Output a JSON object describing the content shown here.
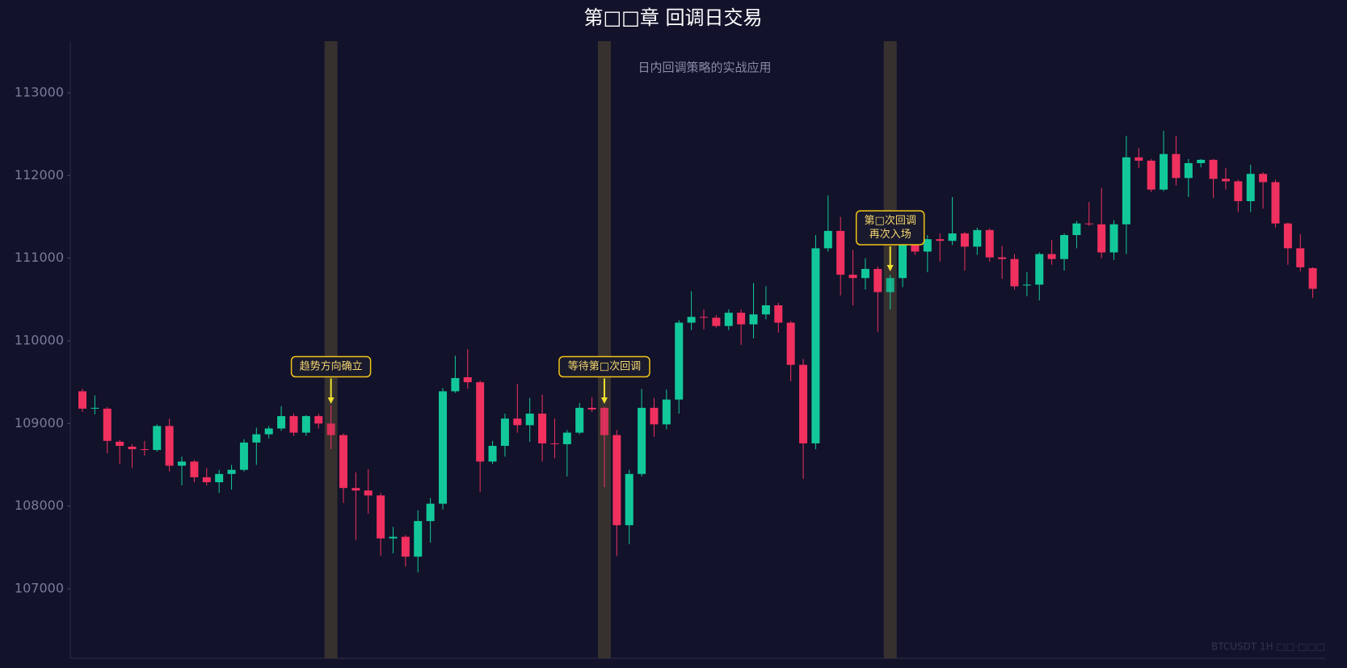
{
  "chart_data": {
    "type": "candlestick",
    "title": "第□□章 回调日交易",
    "subtitle": "日内回调策略的实战应用",
    "watermark": "BTCUSDT 1H  □□·□□□",
    "up_color": "#12c89a",
    "down_color": "#f0305f",
    "background": "#12122a",
    "annotations": [
      [
        "趋势方向确立"
      ],
      [
        "等待第□次回调"
      ],
      [
        "第□次回调",
        "再次入场"
      ]
    ],
    "ylim": [
      106160,
      113625
    ],
    "yticks": [
      107000,
      108000,
      109000,
      110000,
      111000,
      112000,
      113000
    ],
    "open": [
      109390,
      109180,
      109180,
      108780,
      108720,
      108690,
      108680,
      108970,
      108490,
      108540,
      108350,
      108290,
      108390,
      108440,
      108770,
      108870,
      108940,
      109090,
      108890,
      109090,
      109000,
      108860,
      108220,
      108190,
      108130,
      107610,
      107630,
      107390,
      107820,
      108030,
      109390,
      109560,
      109500,
      108540,
      108730,
      109060,
      108980,
      109120,
      108760,
      108750,
      108890,
      109190,
      109190,
      108860,
      107770,
      108390,
      109190,
      108990,
      109290,
      110220,
      110290,
      110280,
      110180,
      110340,
      110200,
      110320,
      110430,
      110220,
      109710,
      108760,
      111120,
      111330,
      110800,
      110760,
      110870,
      110590,
      110760,
      111170,
      111080,
      111230,
      111210,
      111300,
      111140,
      111340,
      111010,
      110990,
      110670,
      110680,
      111050,
      110990,
      111280,
      111420,
      111410,
      111070,
      111410,
      112220,
      112180,
      111830,
      112260,
      111970,
      112150,
      112190,
      111960,
      111930,
      111690,
      112020,
      111920,
      111420,
      111120,
      110880
    ],
    "high": [
      109420,
      109340,
      109200,
      108800,
      108750,
      108790,
      108990,
      109060,
      108600,
      108560,
      108460,
      108440,
      108500,
      108810,
      108950,
      108970,
      109210,
      109120,
      109100,
      109120,
      109220,
      108880,
      108410,
      108450,
      108160,
      107750,
      107650,
      107950,
      108100,
      109430,
      109820,
      109900,
      109520,
      108790,
      109120,
      109480,
      109310,
      109350,
      109060,
      108920,
      109250,
      109320,
      109200,
      108920,
      108440,
      109420,
      109310,
      109410,
      110250,
      110600,
      110380,
      110310,
      110380,
      110380,
      110700,
      110660,
      110460,
      110240,
      109780,
      111280,
      111760,
      111500,
      111100,
      111000,
      110900,
      110800,
      111200,
      111210,
      111280,
      111300,
      111740,
      111320,
      111370,
      111360,
      111150,
      111050,
      110830,
      111070,
      111220,
      111300,
      111450,
      111680,
      111850,
      111460,
      112480,
      112330,
      112200,
      112540,
      112480,
      112200,
      112200,
      112200,
      112090,
      111950,
      112130,
      112040,
      111950,
      111430,
      111290,
      110890
    ],
    "low": [
      109140,
      109110,
      108640,
      108510,
      108460,
      108610,
      108660,
      108420,
      108250,
      108290,
      108250,
      108160,
      108200,
      108420,
      108500,
      108820,
      108910,
      108850,
      108850,
      108940,
      108690,
      108040,
      107590,
      107910,
      107400,
      107430,
      107270,
      107200,
      107560,
      107960,
      109370,
      109420,
      108170,
      108510,
      108600,
      108890,
      108780,
      108540,
      108580,
      108360,
      108870,
      109140,
      108230,
      107400,
      107540,
      108360,
      108840,
      108930,
      109120,
      110130,
      110140,
      110160,
      110130,
      109950,
      110030,
      110260,
      110100,
      109510,
      108330,
      108690,
      111080,
      110550,
      110430,
      110620,
      110110,
      110380,
      110650,
      111040,
      110830,
      110960,
      111160,
      110850,
      111040,
      110960,
      110750,
      110620,
      110540,
      110490,
      110920,
      110850,
      111120,
      111390,
      111000,
      110980,
      111050,
      112090,
      111800,
      111810,
      111880,
      111740,
      112100,
      111730,
      111830,
      111560,
      111560,
      111600,
      111370,
      110920,
      110840,
      110520
    ],
    "close": [
      109180,
      109190,
      108790,
      108730,
      108690,
      108680,
      108970,
      108490,
      108540,
      108350,
      108290,
      108390,
      108440,
      108770,
      108870,
      108940,
      109090,
      108890,
      109090,
      109000,
      108860,
      108220,
      108190,
      108130,
      107610,
      107630,
      107390,
      107820,
      108030,
      109390,
      109550,
      109500,
      108540,
      108730,
      109060,
      108980,
      109120,
      108760,
      108750,
      108890,
      109190,
      109170,
      108860,
      107770,
      108390,
      109190,
      108990,
      109290,
      110220,
      110290,
      110280,
      110180,
      110340,
      110200,
      110320,
      110430,
      110220,
      109710,
      108760,
      111120,
      111330,
      110800,
      110760,
      110870,
      110590,
      110760,
      111170,
      111080,
      111230,
      111210,
      111300,
      111140,
      111340,
      111010,
      110990,
      110660,
      110680,
      111050,
      110990,
      111280,
      111420,
      111410,
      111070,
      111410,
      112220,
      112180,
      111830,
      112260,
      111970,
      112150,
      112190,
      111960,
      111930,
      111690,
      112020,
      111920,
      111420,
      111120,
      110890,
      110630
    ]
  }
}
